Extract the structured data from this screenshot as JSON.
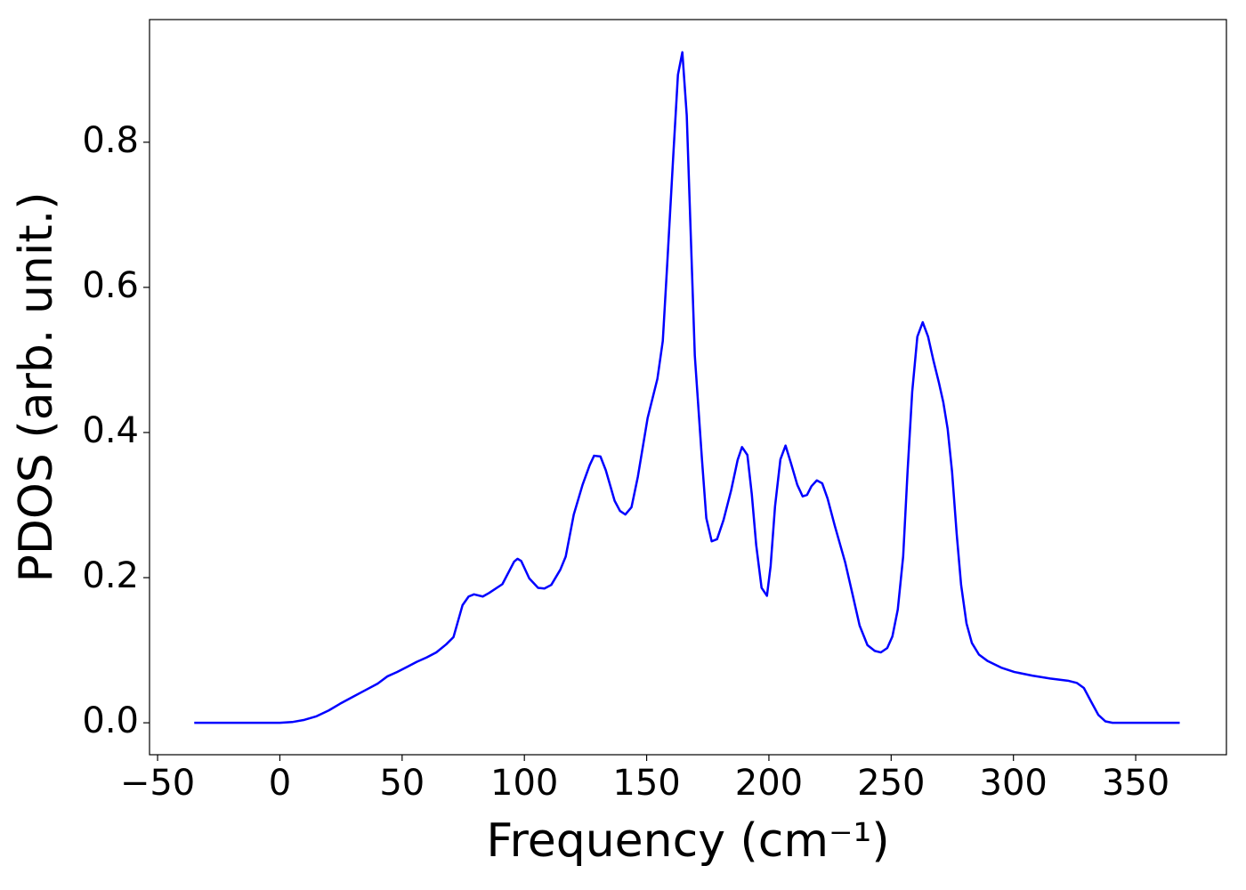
{
  "chart_data": {
    "type": "line",
    "xlabel": "Frequency (cm⁻¹)",
    "ylabel": "PDOS (arb. unit.)",
    "xlim": [
      -53.3,
      387.1
    ],
    "ylim": [
      -0.044,
      0.969
    ],
    "xticks": [
      {
        "value": -50,
        "label": "−50"
      },
      0,
      50,
      100,
      150,
      200,
      250,
      300,
      350
    ],
    "yticks": [
      {
        "value": 0,
        "label": "0.0"
      },
      0.2,
      0.4,
      0.6,
      0.8
    ],
    "grid": false,
    "series": [
      {
        "color": "#0000ff",
        "x": [
          -35,
          -20,
          -10,
          0,
          5,
          10,
          15,
          20,
          25,
          30,
          35,
          40,
          44,
          48,
          52,
          56,
          60,
          64,
          68,
          71,
          74.7,
          77.2,
          79.4,
          83,
          85.6,
          91,
          95.8,
          97.2,
          98.7,
          102,
          105.6,
          108.2,
          111,
          114.7,
          116.9,
          120.2,
          123.8,
          126.7,
          128.5,
          131.1,
          133.3,
          136.9,
          139.1,
          141.3,
          143.8,
          146.4,
          150.4,
          154.4,
          156.6,
          158.4,
          161,
          162.8,
          164.6,
          166.4,
          169.7,
          172.6,
          174.4,
          176.6,
          178.8,
          181.4,
          184.6,
          187.2,
          189,
          191.2,
          193,
          194.8,
          197,
          199.2,
          200.7,
          202.5,
          204.7,
          206.8,
          209,
          211.6,
          213.8,
          215.6,
          217.4,
          219.6,
          221.8,
          224,
          226.9,
          231.2,
          234.2,
          237.1,
          240.3,
          243.3,
          245.8,
          248.4,
          250.5,
          252.7,
          254.9,
          256.7,
          258.6,
          260.7,
          262.9,
          265.1,
          267.3,
          269.5,
          271.3,
          273.1,
          274.9,
          276.8,
          278.6,
          280.8,
          283,
          285.9,
          289.5,
          295,
          300.4,
          307.7,
          315,
          322.3,
          325.9,
          328.8,
          331.8,
          334.7,
          337.6,
          340.5,
          350,
          368
        ],
        "values": [
          0,
          0,
          0,
          0,
          0.001,
          0.004,
          0.009,
          0.017,
          0.027,
          0.036,
          0.045,
          0.054,
          0.064,
          0.07,
          0.077,
          0.084,
          0.09,
          0.097,
          0.108,
          0.118,
          0.162,
          0.174,
          0.177,
          0.174,
          0.179,
          0.191,
          0.222,
          0.226,
          0.223,
          0.199,
          0.186,
          0.185,
          0.19,
          0.211,
          0.229,
          0.287,
          0.328,
          0.355,
          0.368,
          0.367,
          0.348,
          0.306,
          0.292,
          0.287,
          0.297,
          0.339,
          0.42,
          0.474,
          0.526,
          0.631,
          0.788,
          0.893,
          0.924,
          0.837,
          0.506,
          0.364,
          0.282,
          0.25,
          0.253,
          0.279,
          0.321,
          0.362,
          0.38,
          0.369,
          0.315,
          0.245,
          0.186,
          0.175,
          0.216,
          0.298,
          0.363,
          0.382,
          0.358,
          0.328,
          0.312,
          0.314,
          0.326,
          0.334,
          0.33,
          0.309,
          0.272,
          0.221,
          0.177,
          0.134,
          0.107,
          0.099,
          0.097,
          0.103,
          0.119,
          0.156,
          0.229,
          0.346,
          0.456,
          0.532,
          0.552,
          0.532,
          0.499,
          0.469,
          0.442,
          0.405,
          0.346,
          0.26,
          0.19,
          0.137,
          0.11,
          0.094,
          0.085,
          0.076,
          0.07,
          0.065,
          0.061,
          0.058,
          0.055,
          0.048,
          0.029,
          0.011,
          0.002,
          0,
          0,
          0
        ]
      }
    ]
  }
}
